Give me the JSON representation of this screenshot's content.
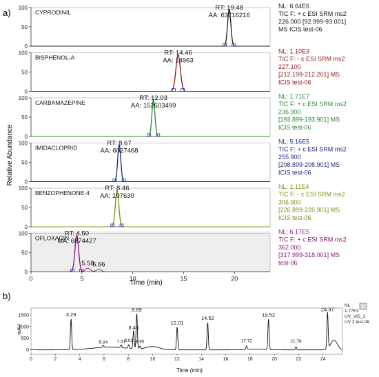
{
  "panel_a": {
    "label": "a)",
    "ylabel": "Relative Abundance",
    "xlabel": "Time (min)",
    "xlim": [
      0,
      23.5
    ],
    "xticks": [
      0,
      5,
      10,
      15,
      20
    ],
    "yticks": [
      0,
      50,
      100
    ],
    "traces": [
      {
        "name": "CYPRODINIL",
        "color": "#222222",
        "rt": 19.48,
        "width": 0.16,
        "rt_label": "RT: 19.48",
        "area_label": "AA: 63716216",
        "info": [
          "NL: 6.64E6",
          "TIC F: + c ESI SRM ms2",
          "226.000 [92.999-93.001]",
          "MS  ICIS test-06"
        ],
        "info_color": "#222222",
        "shaded": false
      },
      {
        "name": "BISPHENOL-A",
        "color": "#8b1a1a",
        "rt": 14.46,
        "width": 0.22,
        "rt_label": "RT: 14.46",
        "area_label": "AA: 14963",
        "info": [
          "NL: 1.10E3",
          "TIC F: - c ESI SRM ms2",
          "227.100",
          "[212.199-212.201]  MS",
          "ICIS test-06"
        ],
        "info_color": "#8b1a1a",
        "shaded": false
      },
      {
        "name": "CARBAMAZEPINE",
        "color": "#2e8b3a",
        "rt": 12.03,
        "width": 0.15,
        "rt_label": "RT: 12.03",
        "area_label": "AA: 152603499",
        "info": [
          "NL: 1.71E7",
          "TIC F: + c ESI SRM ms2",
          "236.900",
          "[193.899-193.901]  MS",
          "ICIS test-06"
        ],
        "info_color": "#2e8b3a",
        "shaded": false
      },
      {
        "name": "IMIDACLOPRID",
        "color": "#1f2a7a",
        "rt": 8.67,
        "width": 0.15,
        "rt_label": "RT: 8.67",
        "area_label": "AA: 6027468",
        "info": [
          "NL: 5.16E5",
          "TIC F: + c ESI SRM ms2",
          "255.900",
          "[208.899-208.901]  MS",
          "ICIS test-06"
        ],
        "info_color": "#1f2a7a",
        "shaded": false
      },
      {
        "name": "BENZOPHENONE-4",
        "color": "#8c8c1a",
        "rt": 8.46,
        "width": 0.17,
        "rt_label": "RT: 8.46",
        "area_label": "AA: 107630",
        "info": [
          "NL: 1.11E4",
          "TIC F: - c ESI SRM ms2",
          "306.900",
          "[226.899-226.901]  MS",
          "ICIS test-06"
        ],
        "info_color": "#8c8c1a",
        "shaded": false
      },
      {
        "name": "OFLOXACIN",
        "color": "#8b1a7a",
        "rt": 4.5,
        "width": 0.18,
        "rt_label": "RT: 4.50",
        "area_label": "MA: 6874427",
        "extra_peaks": [
          {
            "label": "5.58",
            "x": 5.58,
            "height": 0.1
          },
          {
            "label": "6.66",
            "x": 6.66,
            "height": 0.07
          }
        ],
        "info": [
          "NL: 6.17E5",
          "TIC F: + c ESI SRM ms2",
          "362.000",
          "[317.999-318.001]  MS",
          "test-06"
        ],
        "info_color": "#8b1a7a",
        "shaded": true
      }
    ]
  },
  "panel_b": {
    "label": "b)",
    "ylabel": "mAU",
    "xlabel": "Time (min)",
    "xlim": [
      0,
      25.6
    ],
    "ylim": [
      -200,
      1800
    ],
    "xticks": [
      0,
      2,
      4,
      6,
      8,
      10,
      12,
      14,
      16,
      18,
      20,
      22,
      24
    ],
    "yticks": [
      0,
      500,
      1000,
      1500
    ],
    "info": [
      "NL:",
      "1.77E3",
      "UV_VIS_2",
      "UV 2 test-06"
    ],
    "peaks": [
      {
        "label": "3.29",
        "x": 3.29,
        "y": 1350
      },
      {
        "label": "5.94",
        "x": 5.94,
        "y": 90
      },
      {
        "label": "7.41",
        "x": 7.41,
        "y": 120
      },
      {
        "label": "8.03",
        "x": 8.03,
        "y": 160
      },
      {
        "label": "8.43",
        "x": 8.43,
        "y": 780
      },
      {
        "label": "8.69",
        "x": 8.69,
        "y": 1560
      },
      {
        "label": "8.95",
        "x": 8.95,
        "y": 120
      },
      {
        "label": "12.01",
        "x": 12.01,
        "y": 1000
      },
      {
        "label": "14.52",
        "x": 14.52,
        "y": 1200
      },
      {
        "label": "17.72",
        "x": 17.72,
        "y": 150
      },
      {
        "label": "19.52",
        "x": 19.52,
        "y": 1330
      },
      {
        "label": "21.78",
        "x": 21.78,
        "y": 130
      },
      {
        "label": "24.37",
        "x": 24.37,
        "y": 1580
      }
    ]
  },
  "chart_data": [
    {
      "type": "line",
      "title": "",
      "xlabel": "Time (min)",
      "ylabel": "Relative Abundance",
      "xlim": [
        0,
        23.5
      ],
      "ylim": [
        0,
        100
      ],
      "series": [
        {
          "name": "CYPRODINIL",
          "x": [
            19.48
          ],
          "values": [
            100
          ]
        },
        {
          "name": "BISPHENOL-A",
          "x": [
            14.46
          ],
          "values": [
            100
          ]
        },
        {
          "name": "CARBAMAZEPINE",
          "x": [
            12.03
          ],
          "values": [
            100
          ]
        },
        {
          "name": "IMIDACLOPRID",
          "x": [
            8.67
          ],
          "values": [
            100
          ]
        },
        {
          "name": "BENZOPHENONE-4",
          "x": [
            8.46
          ],
          "values": [
            100
          ]
        },
        {
          "name": "OFLOXACIN",
          "x": [
            4.5,
            5.58,
            6.66
          ],
          "values": [
            100,
            10,
            7
          ]
        }
      ]
    },
    {
      "type": "line",
      "title": "",
      "xlabel": "Time (min)",
      "ylabel": "mAU",
      "xlim": [
        0,
        25.6
      ],
      "ylim": [
        -200,
        1800
      ],
      "series": [
        {
          "name": "UV_VIS_2",
          "x": [
            3.29,
            5.94,
            7.41,
            8.03,
            8.43,
            8.69,
            8.95,
            12.01,
            14.52,
            17.72,
            19.52,
            21.78,
            24.37
          ],
          "values": [
            1350,
            90,
            120,
            160,
            780,
            1560,
            120,
            1000,
            1200,
            150,
            1330,
            130,
            1580
          ]
        }
      ]
    }
  ]
}
